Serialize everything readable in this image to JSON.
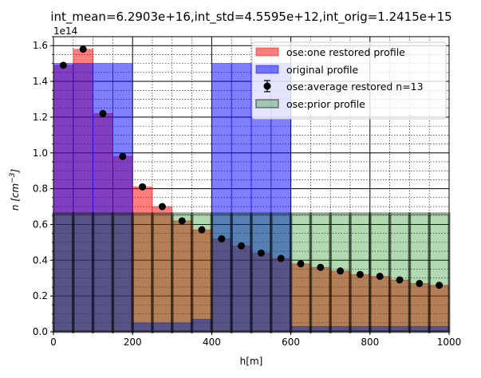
{
  "chart_data": {
    "type": "bar",
    "title": "int_mean=6.2903e+16,int_std=4.5595e+12,int_orig=1.2415e+15",
    "xlabel": "h[m]",
    "ylabel": "n [cm^-3]",
    "ylabel_display": {
      "base": "n [cm",
      "exp": "−3",
      "close": "]"
    },
    "y_offset_text": {
      "base": "1e14"
    },
    "xlim": [
      0,
      1000
    ],
    "ylim": [
      0,
      1.65
    ],
    "y_scale_factor": 100000000000000.0,
    "xticks": [
      0,
      200,
      400,
      600,
      800,
      1000
    ],
    "x_tick_labels": [
      "0",
      "200",
      "400",
      "600",
      "800",
      "1000"
    ],
    "yticks": [
      0.0,
      0.2,
      0.4,
      0.6,
      0.8,
      1.0,
      1.2,
      1.4,
      1.6
    ],
    "y_tick_labels": [
      "0.0",
      "0.2",
      "0.4",
      "0.6",
      "0.8",
      "1.0",
      "1.2",
      "1.4",
      "1.6"
    ],
    "grid": true,
    "legend_position": "top-right",
    "bin_edges": [
      0,
      50,
      100,
      150,
      200,
      250,
      300,
      350,
      400,
      450,
      500,
      550,
      600,
      650,
      700,
      750,
      800,
      850,
      900,
      950,
      1000
    ],
    "series": [
      {
        "name": "ose:one restored profile",
        "kind": "bar",
        "color": "#ff0000",
        "alpha": 0.5,
        "values": [
          1.49,
          1.58,
          1.22,
          0.98,
          0.81,
          0.7,
          0.62,
          0.57,
          0.52,
          0.48,
          0.44,
          0.41,
          0.38,
          0.36,
          0.34,
          0.32,
          0.31,
          0.29,
          0.27,
          0.26
        ]
      },
      {
        "name": "original profile",
        "kind": "bar",
        "color": "#0000ff",
        "alpha": 0.5,
        "values": [
          1.5,
          1.5,
          1.5,
          1.5,
          0.05,
          0.05,
          0.05,
          0.07,
          1.5,
          1.5,
          1.5,
          1.5,
          0.03,
          0.03,
          0.03,
          0.03,
          0.03,
          0.03,
          0.03,
          0.03
        ]
      },
      {
        "name": "ose:average restored n=13",
        "kind": "errorbar",
        "color": "#000000",
        "x": [
          25,
          75,
          125,
          175,
          225,
          275,
          325,
          375,
          425,
          475,
          525,
          575,
          625,
          675,
          725,
          775,
          825,
          875,
          925,
          975
        ],
        "values": [
          1.49,
          1.58,
          1.22,
          0.98,
          0.81,
          0.7,
          0.62,
          0.57,
          0.52,
          0.48,
          0.44,
          0.41,
          0.38,
          0.36,
          0.34,
          0.32,
          0.31,
          0.29,
          0.27,
          0.26
        ]
      },
      {
        "name": "ose:prior profile",
        "kind": "bar",
        "color": "#008000",
        "edgecolor": "#000000",
        "alpha": 0.3,
        "values": [
          0.66,
          0.66,
          0.66,
          0.66,
          0.66,
          0.66,
          0.66,
          0.66,
          0.66,
          0.66,
          0.66,
          0.66,
          0.66,
          0.66,
          0.66,
          0.66,
          0.66,
          0.66,
          0.66,
          0.66
        ]
      }
    ]
  }
}
